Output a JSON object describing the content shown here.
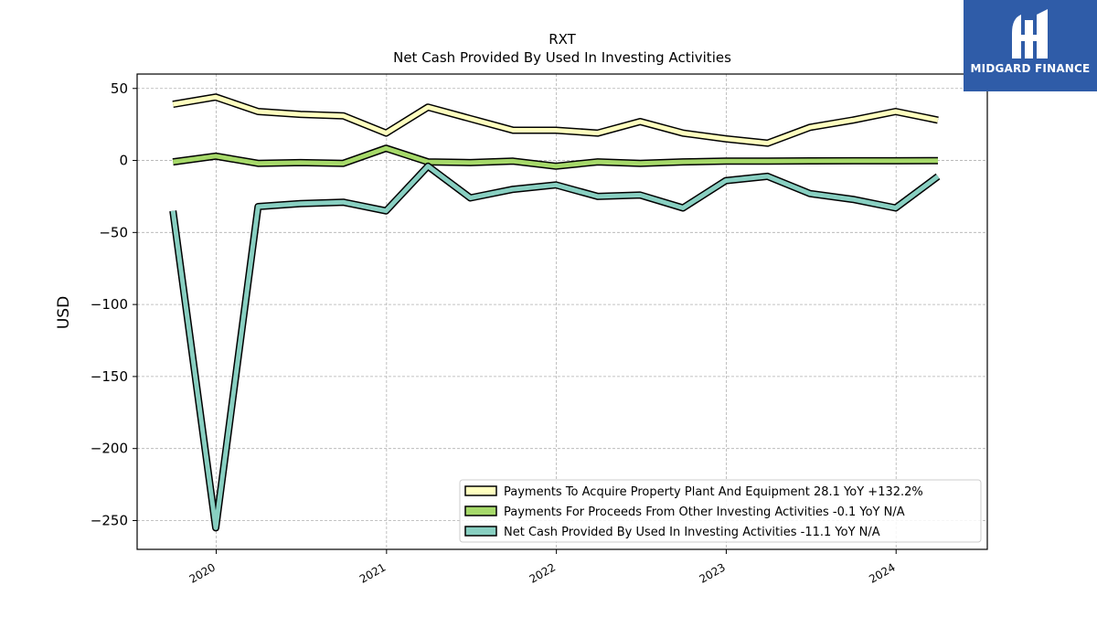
{
  "logo": {
    "text": "MIDGARD FINANCE",
    "bg_color": "#2f5ca8"
  },
  "chart_data": {
    "type": "line",
    "title": "RXT",
    "subtitle": "Net Cash Provided By Used In Investing Activities",
    "xlabel": "",
    "ylabel": "USD",
    "ylim": [
      -270,
      60
    ],
    "yticks": [
      50,
      0,
      -50,
      -100,
      -150,
      -200,
      -250
    ],
    "ytick_labels": [
      "50",
      "0",
      "−50",
      "−100",
      "−150",
      "−200",
      "−250"
    ],
    "xlim": [
      "2019-07-15",
      "2024-07-15"
    ],
    "xticks": [
      "2020-01-01",
      "2021-01-01",
      "2022-01-01",
      "2023-01-01",
      "2024-01-01"
    ],
    "xtick_labels": [
      "2020",
      "2021",
      "2022",
      "2023",
      "2024"
    ],
    "grid": true,
    "legend_position": "lower-right",
    "x": [
      "2019-09-30",
      "2019-12-31",
      "2020-03-31",
      "2020-06-30",
      "2020-09-30",
      "2020-12-31",
      "2021-03-31",
      "2021-06-30",
      "2021-09-30",
      "2021-12-31",
      "2022-03-31",
      "2022-06-30",
      "2022-09-30",
      "2022-12-31",
      "2023-03-31",
      "2023-06-30",
      "2023-09-30",
      "2023-12-31",
      "2024-03-31"
    ],
    "series": [
      {
        "name": "Payments To Acquire Property Plant And Equipment  28.1 YoY +132.2%",
        "color": "#ffffbf",
        "values": [
          39,
          44,
          34,
          32,
          31,
          19,
          37,
          29,
          21,
          21,
          19,
          27,
          19,
          15,
          12,
          23,
          28,
          34,
          28
        ]
      },
      {
        "name": "Payments For Proceeds From Other Investing Activities  -0.1 YoY N/A",
        "color": "#a6d96a",
        "values": [
          -1,
          3,
          -2,
          -1.5,
          -2,
          8.5,
          -1,
          -1.5,
          -0.5,
          -4,
          -1,
          -2,
          -1,
          -0.5,
          -0.5,
          -0.3,
          -0.2,
          -0.2,
          -0.1
        ]
      },
      {
        "name": "Net Cash Provided By Used In Investing Activities  -11.1 YoY N/A",
        "color": "#88cfc1",
        "values": [
          -35,
          -255,
          -32,
          -30,
          -29,
          -35,
          -4,
          -26,
          -20,
          -17,
          -25,
          -24,
          -33,
          -14,
          -11,
          -23,
          -27,
          -33,
          -11.1
        ]
      }
    ]
  }
}
